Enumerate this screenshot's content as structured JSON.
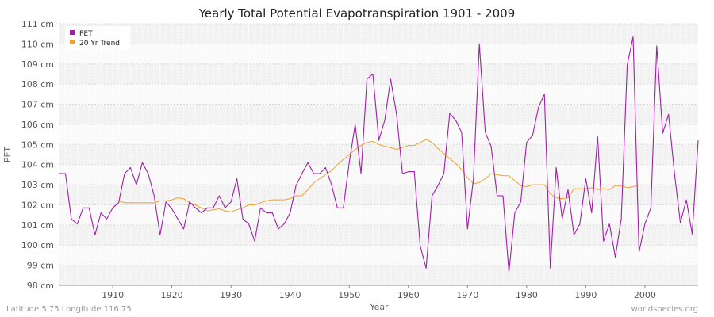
{
  "chart_data": {
    "type": "line",
    "title": "Yearly Total Potential Evapotranspiration 1901 - 2009",
    "xlabel": "Year",
    "ylabel": "PET",
    "xlim": [
      1901,
      2009
    ],
    "ylim": [
      98,
      111
    ],
    "x_ticks": [
      1910,
      1920,
      1930,
      1940,
      1950,
      1960,
      1970,
      1980,
      1990,
      2000
    ],
    "x_tick_labels": [
      "1910",
      "1920",
      "1930",
      "1940",
      "1950",
      "1960",
      "1970",
      "1980",
      "1990",
      "2000"
    ],
    "y_ticks": [
      98,
      99,
      100,
      101,
      102,
      103,
      104,
      105,
      106,
      107,
      108,
      109,
      110,
      111
    ],
    "y_tick_labels": [
      "98 cm",
      "99 cm",
      "100 cm",
      "101 cm",
      "102 cm",
      "103 cm",
      "104 cm",
      "105 cm",
      "106 cm",
      "107 cm",
      "108 cm",
      "109 cm",
      "110 cm",
      "111 cm"
    ],
    "grid": true,
    "legend_position": "top-left",
    "series": [
      {
        "name": "PET",
        "color": "#a020a8",
        "x": [
          1901,
          1902,
          1903,
          1904,
          1905,
          1906,
          1907,
          1908,
          1909,
          1910,
          1911,
          1912,
          1913,
          1914,
          1915,
          1916,
          1917,
          1918,
          1919,
          1920,
          1921,
          1922,
          1923,
          1924,
          1925,
          1926,
          1927,
          1928,
          1929,
          1930,
          1931,
          1932,
          1933,
          1934,
          1935,
          1936,
          1937,
          1938,
          1939,
          1940,
          1941,
          1942,
          1943,
          1944,
          1945,
          1946,
          1947,
          1948,
          1949,
          1950,
          1951,
          1952,
          1953,
          1954,
          1955,
          1956,
          1957,
          1958,
          1959,
          1960,
          1961,
          1962,
          1963,
          1964,
          1965,
          1966,
          1967,
          1968,
          1969,
          1970,
          1971,
          1972,
          1973,
          1974,
          1975,
          1976,
          1977,
          1978,
          1979,
          1980,
          1981,
          1982,
          1983,
          1984,
          1985,
          1986,
          1987,
          1988,
          1989,
          1990,
          1991,
          1992,
          1993,
          1994,
          1995,
          1996,
          1997,
          1998,
          1999,
          2000,
          2001,
          2002,
          2003,
          2004,
          2005,
          2006,
          2007,
          2008,
          2009
        ],
        "values": [
          103.55,
          103.55,
          101.3,
          101.05,
          101.85,
          101.85,
          100.5,
          101.6,
          101.3,
          101.85,
          102.1,
          103.55,
          103.85,
          103.0,
          104.1,
          103.55,
          102.45,
          100.5,
          102.15,
          101.8,
          101.3,
          100.8,
          102.15,
          101.85,
          101.6,
          101.85,
          101.85,
          102.45,
          101.85,
          102.15,
          103.3,
          101.3,
          101.05,
          100.2,
          101.85,
          101.6,
          101.6,
          100.8,
          101.05,
          101.6,
          102.95,
          103.55,
          104.1,
          103.55,
          103.55,
          103.85,
          103.0,
          101.85,
          101.85,
          104.1,
          106.0,
          103.55,
          108.25,
          108.5,
          105.2,
          106.2,
          108.25,
          106.5,
          103.55,
          103.65,
          103.65,
          99.95,
          98.85,
          102.45,
          102.95,
          103.55,
          106.55,
          106.2,
          105.6,
          100.8,
          103.3,
          110.0,
          105.6,
          104.9,
          102.45,
          102.45,
          98.65,
          101.6,
          102.15,
          105.1,
          105.45,
          106.85,
          107.5,
          98.85,
          103.85,
          101.3,
          102.75,
          100.5,
          101.05,
          103.3,
          101.6,
          105.4,
          100.2,
          101.05,
          99.4,
          101.3,
          108.95,
          110.35,
          99.65,
          101.05,
          101.85,
          109.9,
          105.55,
          106.5,
          103.55,
          101.1,
          102.25,
          100.55,
          105.2
        ]
      },
      {
        "name": "20 Yr Trend",
        "color": "#f0a030",
        "x": [
          1911,
          1912,
          1913,
          1914,
          1915,
          1916,
          1917,
          1918,
          1919,
          1920,
          1921,
          1922,
          1923,
          1924,
          1925,
          1926,
          1927,
          1928,
          1929,
          1930,
          1931,
          1932,
          1933,
          1934,
          1935,
          1936,
          1937,
          1938,
          1939,
          1940,
          1941,
          1942,
          1943,
          1944,
          1945,
          1946,
          1947,
          1948,
          1949,
          1950,
          1951,
          1952,
          1953,
          1954,
          1955,
          1956,
          1957,
          1958,
          1959,
          1960,
          1961,
          1962,
          1963,
          1964,
          1965,
          1966,
          1967,
          1968,
          1969,
          1970,
          1971,
          1972,
          1973,
          1974,
          1975,
          1976,
          1977,
          1978,
          1979,
          1980,
          1981,
          1982,
          1983,
          1984,
          1985,
          1986,
          1987,
          1988,
          1989,
          1990,
          1991,
          1992,
          1993,
          1994,
          1995,
          1996,
          1997,
          1998,
          1999
        ],
        "values": [
          102.2,
          102.1,
          102.1,
          102.1,
          102.1,
          102.1,
          102.1,
          102.2,
          102.2,
          102.25,
          102.35,
          102.3,
          102.1,
          102.0,
          101.85,
          101.7,
          101.75,
          101.8,
          101.7,
          101.65,
          101.75,
          101.85,
          102.0,
          102.0,
          102.1,
          102.2,
          102.25,
          102.25,
          102.25,
          102.3,
          102.45,
          102.45,
          102.75,
          103.1,
          103.3,
          103.5,
          103.7,
          104.0,
          104.25,
          104.5,
          104.75,
          104.95,
          105.1,
          105.15,
          105.0,
          104.9,
          104.85,
          104.75,
          104.85,
          104.95,
          104.95,
          105.1,
          105.25,
          105.1,
          104.8,
          104.55,
          104.3,
          104.05,
          103.75,
          103.35,
          103.05,
          103.1,
          103.3,
          103.55,
          103.5,
          103.45,
          103.45,
          103.2,
          102.95,
          102.9,
          103.0,
          103.0,
          103.0,
          102.55,
          102.35,
          102.3,
          102.35,
          102.8,
          102.8,
          102.8,
          102.85,
          102.75,
          102.8,
          102.75,
          102.95,
          102.95,
          102.85,
          102.9,
          103.0
        ]
      }
    ]
  },
  "footer": {
    "left": "Latitude 5.75 Longitude 116.75",
    "right": "worldspecies.org"
  }
}
